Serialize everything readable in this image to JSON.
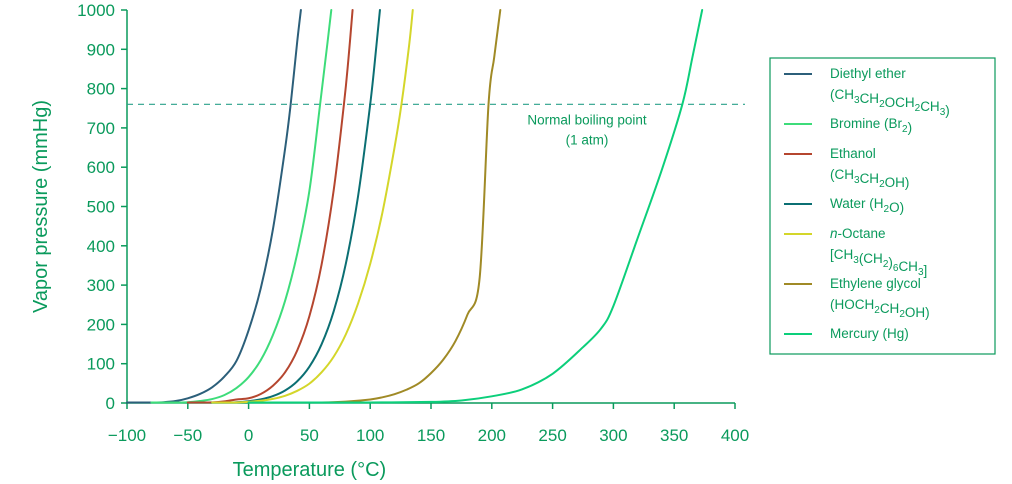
{
  "chart_data": {
    "type": "line",
    "xlabel": "Temperature (°C)",
    "ylabel": "Vapor pressure (mmHg)",
    "xlim": [
      -100,
      400
    ],
    "ylim": [
      0,
      1000
    ],
    "xticks": [
      -100,
      -50,
      0,
      50,
      100,
      150,
      200,
      250,
      300,
      350,
      400
    ],
    "xtick_labels": [
      "−100",
      "−50",
      "0",
      "50",
      "100",
      "150",
      "200",
      "250",
      "300",
      "350",
      "400"
    ],
    "yticks": [
      0,
      100,
      200,
      300,
      400,
      500,
      600,
      700,
      800,
      900,
      1000
    ],
    "ytick_labels": [
      "0",
      "100",
      "200",
      "300",
      "400",
      "500",
      "600",
      "700",
      "800",
      "900",
      "1000"
    ],
    "reference_line": {
      "y": 760,
      "style": "dashed",
      "label_line1": "Normal boiling point",
      "label_line2": "(1 atm)"
    },
    "series": [
      {
        "name": "Diethyl ether",
        "formula": [
          [
            "(CH",
            ""
          ],
          [
            "3",
            "sub"
          ],
          [
            "CH",
            ""
          ],
          [
            "2",
            "sub"
          ],
          [
            "OCH",
            ""
          ],
          [
            "2",
            "sub"
          ],
          [
            "CH",
            ""
          ],
          [
            "3",
            "sub"
          ],
          [
            ")",
            ""
          ]
        ],
        "color": "#2c5f7a",
        "x": [
          -100,
          -90,
          -80,
          -70,
          -60,
          -50,
          -40,
          -30,
          -20,
          -10,
          0,
          10,
          20,
          30,
          34.6,
          40,
          43
        ],
        "y": [
          0.1,
          0.3,
          0.8,
          2,
          5,
          12,
          23,
          40,
          67,
          107,
          185,
          292,
          442,
          647,
          760,
          920,
          1000
        ]
      },
      {
        "name": "Bromine",
        "name_suffix": [
          [
            "(Br",
            ""
          ],
          [
            "2",
            "sub"
          ],
          [
            ")",
            ""
          ]
        ],
        "formula": [],
        "color": "#3ddc7a",
        "x": [
          -80,
          -70,
          -60,
          -50,
          -40,
          -30,
          -20,
          -10,
          0,
          10,
          20,
          30,
          40,
          50,
          58.8,
          65,
          68
        ],
        "y": [
          0.1,
          0.3,
          0.8,
          2,
          5,
          10,
          20,
          38,
          66,
          109,
          173,
          260,
          380,
          540,
          760,
          920,
          1000
        ]
      },
      {
        "name": "Ethanol",
        "formula": [
          [
            "(CH",
            ""
          ],
          [
            "3",
            "sub"
          ],
          [
            "CH",
            ""
          ],
          [
            "2",
            "sub"
          ],
          [
            "OH)",
            ""
          ]
        ],
        "color": "#b5462f",
        "x": [
          -50,
          -40,
          -30,
          -20,
          -10,
          0,
          10,
          20,
          30,
          40,
          50,
          60,
          70,
          78.4,
          82,
          85.5
        ],
        "y": [
          0.2,
          0.5,
          1.5,
          4,
          9,
          12,
          23,
          44,
          78,
          134,
          221,
          352,
          542,
          760,
          872,
          1000
        ]
      },
      {
        "name": "Water",
        "name_suffix": [
          [
            "(H",
            ""
          ],
          [
            "2",
            "sub"
          ],
          [
            "O)",
            ""
          ]
        ],
        "formula": [],
        "color": "#0b6f73",
        "x": [
          -30,
          -20,
          -10,
          0,
          10,
          20,
          30,
          40,
          50,
          60,
          70,
          80,
          90,
          100,
          105,
          108
        ],
        "y": [
          0.3,
          0.8,
          2,
          4.6,
          9.2,
          17.5,
          31.8,
          55.3,
          92.5,
          149.4,
          233.7,
          355.1,
          525.8,
          760,
          906,
          1000
        ]
      },
      {
        "name": "n-Octane",
        "italic_prefix": "n",
        "formula": [
          [
            "[CH",
            ""
          ],
          [
            "3",
            "sub"
          ],
          [
            "(CH",
            ""
          ],
          [
            "2",
            "sub"
          ],
          [
            ")",
            ""
          ],
          [
            "6",
            "sub"
          ],
          [
            "CH",
            ""
          ],
          [
            "3",
            "sub"
          ],
          [
            "]",
            ""
          ]
        ],
        "color": "#d4d62a",
        "x": [
          -30,
          -20,
          -10,
          0,
          10,
          20,
          30,
          40,
          50,
          60,
          70,
          80,
          90,
          100,
          110,
          120,
          125.7,
          132,
          135
        ],
        "y": [
          0.1,
          0.3,
          0.8,
          3,
          5.6,
          10.5,
          18.4,
          31,
          49.3,
          78,
          118,
          175,
          253,
          354,
          484,
          650,
          760,
          910,
          1000
        ]
      },
      {
        "name": "Ethylene glycol",
        "formula": [
          [
            "(HOCH",
            ""
          ],
          [
            "2",
            "sub"
          ],
          [
            "CH",
            ""
          ],
          [
            "2",
            "sub"
          ],
          [
            "OH)",
            ""
          ]
        ],
        "color": "#a08a26",
        "x": [
          0,
          20,
          40,
          60,
          80,
          100,
          110,
          120,
          130,
          140,
          150,
          160,
          170,
          180,
          190,
          197.3,
          202,
          207
        ],
        "y": [
          0.1,
          0.2,
          0.5,
          1.2,
          3.5,
          9,
          14.5,
          22.5,
          34,
          50,
          76,
          110,
          157,
          225,
          318,
          760,
          880,
          1000
        ]
      },
      {
        "name": "Mercury",
        "name_suffix": [
          [
            "(Hg)",
            ""
          ]
        ],
        "formula": [],
        "color": "#0ccf7b",
        "x": [
          0,
          50,
          100,
          150,
          175,
          200,
          225,
          250,
          275,
          290,
          300,
          320,
          340,
          356.7,
          365,
          373
        ],
        "y": [
          0.1,
          0.3,
          0.3,
          2.8,
          6.5,
          17,
          34.8,
          74.4,
          142,
          190,
          246.8,
          420,
          595,
          760,
          880,
          1000
        ]
      }
    ]
  }
}
